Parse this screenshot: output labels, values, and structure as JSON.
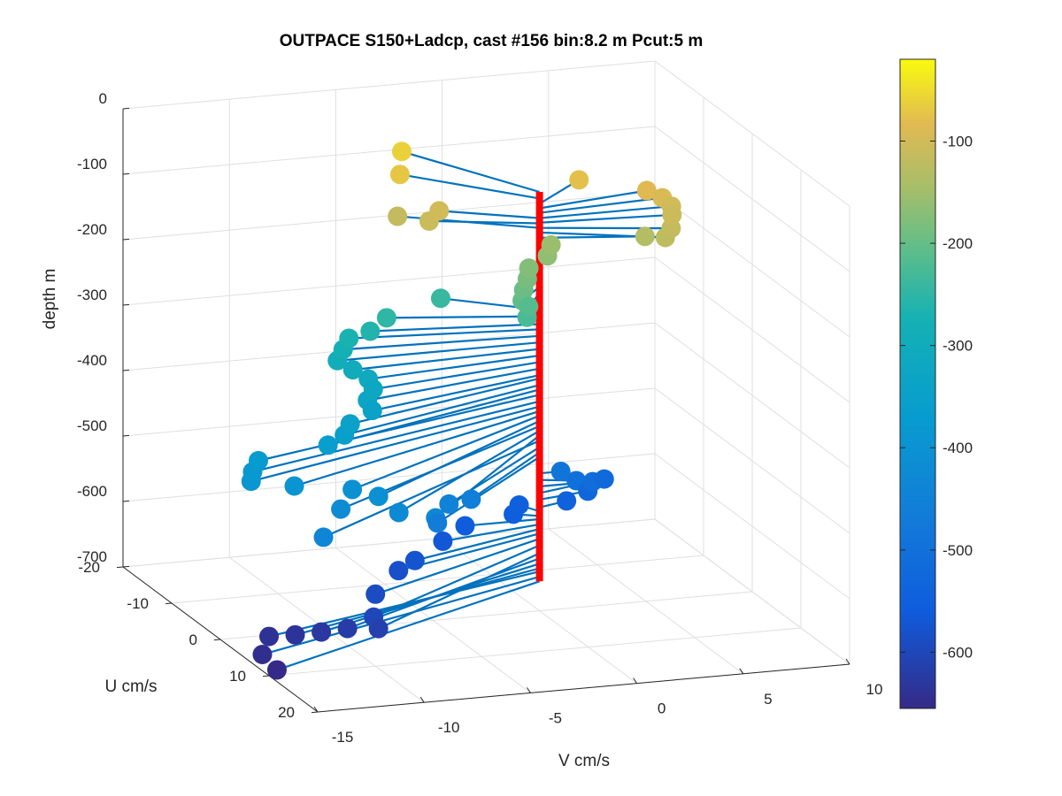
{
  "chart_data": {
    "type": "scatter",
    "title": "OUTPACE S150+Ladcp, cast #156 bin:8.2 m  Pcut:5 m",
    "xlabel": "V cm/s",
    "ylabel": "U cm/s",
    "zlabel": "depth m",
    "xlim": [
      -15,
      10
    ],
    "ylim": [
      -20,
      20
    ],
    "zlim": [
      -700,
      0
    ],
    "xticks": [
      "-15",
      "-10",
      "-5",
      "0",
      "5",
      "10"
    ],
    "yticks": [
      "-20",
      "-10",
      "0",
      "10",
      "20"
    ],
    "zticks": [
      "0",
      "-100",
      "-200",
      "-300",
      "-400",
      "-500",
      "-600",
      "-700"
    ],
    "grid": true,
    "colorbar": {
      "range": [
        -655,
        -20
      ],
      "ticks": [
        "-100",
        "-200",
        "-300",
        "-400",
        "-500",
        "-600"
      ],
      "colormap": "parula"
    },
    "points": [
      {
        "depth": -60,
        "u": -13,
        "v": -3.5
      },
      {
        "depth": -70,
        "u": -9,
        "v": -4.5
      },
      {
        "depth": -78,
        "u": -5,
        "v": 3
      },
      {
        "depth": -85,
        "u": -2,
        "v": 5.5
      },
      {
        "depth": -92,
        "u": -1,
        "v": 6
      },
      {
        "depth": -100,
        "u": 0,
        "v": 6.2
      },
      {
        "depth": -107,
        "u": 1,
        "v": 6
      },
      {
        "depth": -115,
        "u": 3,
        "v": 5.5
      },
      {
        "depth": -122,
        "u": 4,
        "v": 5
      },
      {
        "depth": -130,
        "u": 2,
        "v": 4.5
      },
      {
        "depth": -100,
        "u": -4,
        "v": -3.8
      },
      {
        "depth": -108,
        "u": -3,
        "v": -4.5
      },
      {
        "depth": -115,
        "u": -6,
        "v": -5.3
      },
      {
        "depth": -155,
        "u": -2,
        "v": 1
      },
      {
        "depth": -165,
        "u": -1,
        "v": 0.6
      },
      {
        "depth": -175,
        "u": 0,
        "v": -0.5
      },
      {
        "depth": -185,
        "u": 1,
        "v": -0.8
      },
      {
        "depth": -195,
        "u": 2,
        "v": -1.2
      },
      {
        "depth": -205,
        "u": 3,
        "v": -1.5
      },
      {
        "depth": -215,
        "u": 3,
        "v": -1.2
      },
      {
        "depth": -225,
        "u": 4,
        "v": -1.5
      },
      {
        "depth": -240,
        "u": -5,
        "v": -3.5
      },
      {
        "depth": -250,
        "u": -3,
        "v": -6.5
      },
      {
        "depth": -262,
        "u": -2,
        "v": -7.5
      },
      {
        "depth": -270,
        "u": -2,
        "v": -8.5
      },
      {
        "depth": -280,
        "u": -1,
        "v": -9
      },
      {
        "depth": -290,
        "u": 0,
        "v": -9.5
      },
      {
        "depth": -300,
        "u": 1,
        "v": -9
      },
      {
        "depth": -310,
        "u": 2,
        "v": -8.5
      },
      {
        "depth": -320,
        "u": 3,
        "v": -8.5
      },
      {
        "depth": -330,
        "u": 4,
        "v": -9
      },
      {
        "depth": -340,
        "u": 5,
        "v": -9
      },
      {
        "depth": -345,
        "u": 7,
        "v": -10.5
      },
      {
        "depth": -355,
        "u": 8,
        "v": -11
      },
      {
        "depth": -362,
        "u": 9,
        "v": -12
      },
      {
        "depth": -370,
        "u": 10,
        "v": -15.5
      },
      {
        "depth": -380,
        "u": 11,
        "v": -16
      },
      {
        "depth": -388,
        "u": 12,
        "v": -16.3
      },
      {
        "depth": -395,
        "u": 13,
        "v": -14.5
      },
      {
        "depth": -402,
        "u": 14,
        "v": -12
      },
      {
        "depth": -410,
        "u": 15,
        "v": -11
      },
      {
        "depth": -418,
        "u": 16,
        "v": -13
      },
      {
        "depth": -425,
        "u": 17,
        "v": -10.5
      },
      {
        "depth": -432,
        "u": 18,
        "v": -9
      },
      {
        "depth": -440,
        "u": 19,
        "v": -14.5
      },
      {
        "depth": -450,
        "u": 12,
        "v": -7
      },
      {
        "depth": -458,
        "u": 10,
        "v": -5.5
      },
      {
        "depth": -465,
        "u": 14,
        "v": -8
      },
      {
        "depth": -490,
        "u": 0,
        "v": 1
      },
      {
        "depth": -500,
        "u": 1,
        "v": 1.5
      },
      {
        "depth": -510,
        "u": 0,
        "v": 2.5
      },
      {
        "depth": -520,
        "u": -2,
        "v": 3.5
      },
      {
        "depth": -530,
        "u": -1,
        "v": 2.5
      },
      {
        "depth": -542,
        "u": -1,
        "v": 1.5
      },
      {
        "depth": -548,
        "u": -2,
        "v": -0.5
      },
      {
        "depth": -555,
        "u": -1,
        "v": -1
      },
      {
        "depth": -560,
        "u": 0,
        "v": -3.5
      },
      {
        "depth": -568,
        "u": 2,
        "v": -5
      },
      {
        "depth": -575,
        "u": 5,
        "v": -7
      },
      {
        "depth": -582,
        "u": 6,
        "v": -8
      },
      {
        "depth": -590,
        "u": 10,
        "v": -10
      },
      {
        "depth": -600,
        "u": 14,
        "v": -11
      },
      {
        "depth": -612,
        "u": 15,
        "v": -11
      },
      {
        "depth": -620,
        "u": 13,
        "v": -12
      },
      {
        "depth": -628,
        "u": 12,
        "v": -13
      },
      {
        "depth": -635,
        "u": 11,
        "v": -14
      },
      {
        "depth": -640,
        "u": 10,
        "v": -15
      },
      {
        "depth": -648,
        "u": 13,
        "v": -16
      },
      {
        "depth": -655,
        "u": 16,
        "v": -16
      }
    ]
  }
}
